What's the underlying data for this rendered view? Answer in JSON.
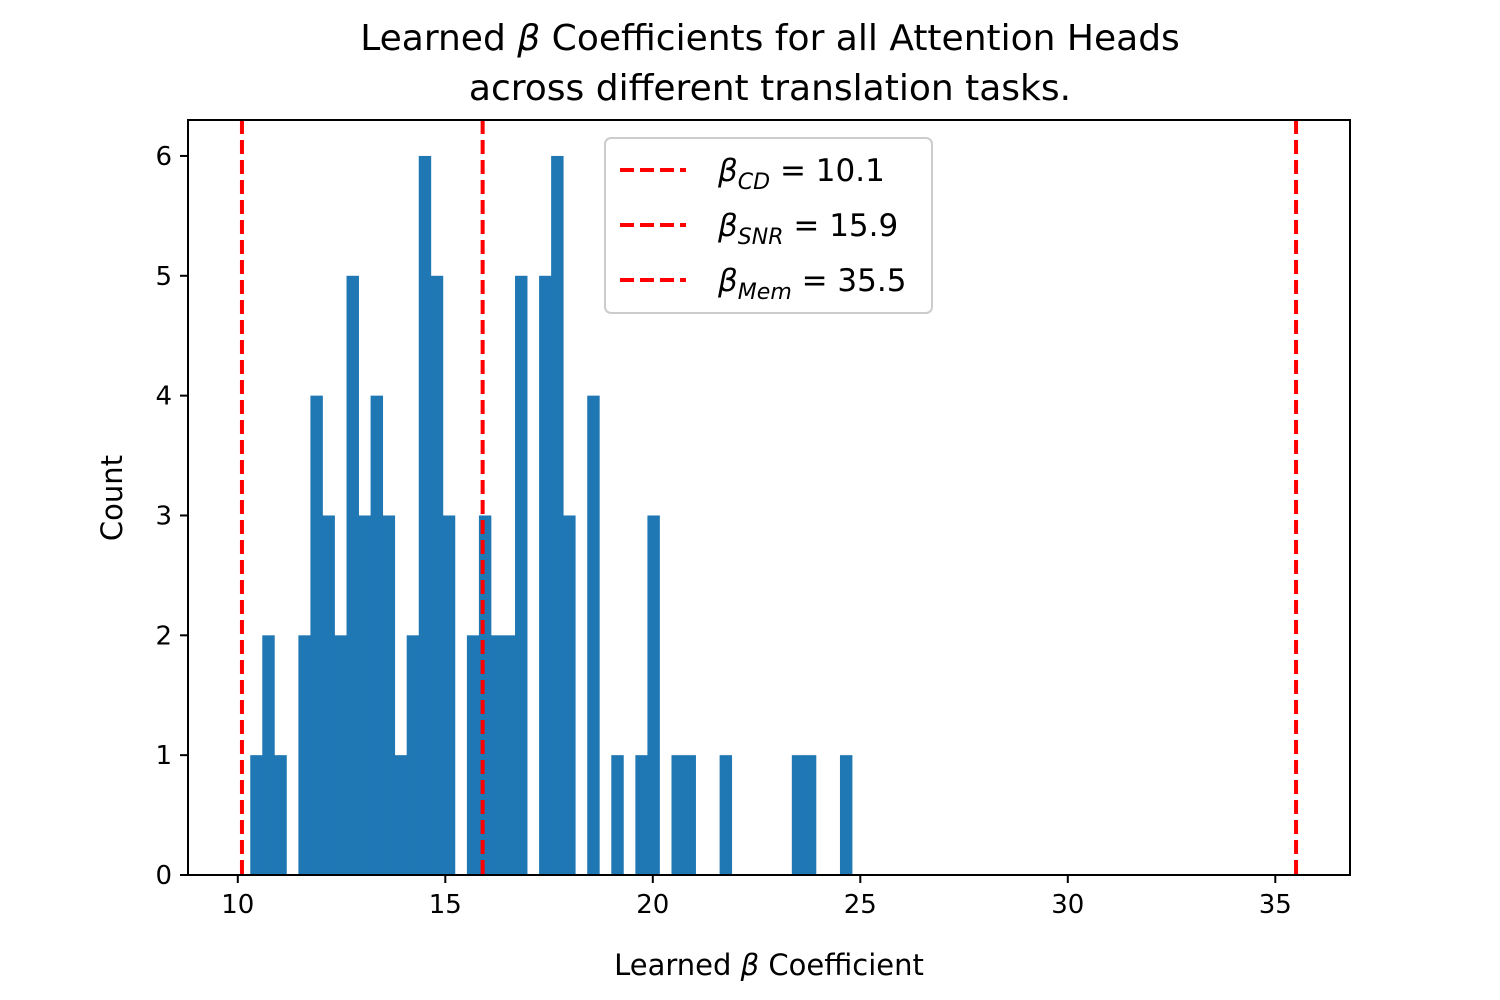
{
  "chart_data": {
    "type": "bar",
    "title_line1_pre": "Learned ",
    "title_symbol": "β",
    "title_line1_post": " Coefficients for all Attention Heads",
    "title_line2": "across different translation tasks.",
    "xlabel_pre": "Learned ",
    "xlabel_symbol": "β",
    "xlabel_post": " Coefficient",
    "ylabel": "Count",
    "xlim": [
      8.8,
      36.8
    ],
    "ylim": [
      0,
      6.3
    ],
    "xticks": [
      10,
      15,
      20,
      25,
      30,
      35
    ],
    "yticks": [
      0,
      1,
      2,
      3,
      4,
      5,
      6
    ],
    "bin_width": 0.29,
    "bins": [
      {
        "x": 10.3,
        "count": 1
      },
      {
        "x": 10.59,
        "count": 2
      },
      {
        "x": 10.88,
        "count": 1
      },
      {
        "x": 11.46,
        "count": 2
      },
      {
        "x": 11.75,
        "count": 4
      },
      {
        "x": 12.04,
        "count": 3
      },
      {
        "x": 12.33,
        "count": 2
      },
      {
        "x": 12.62,
        "count": 5
      },
      {
        "x": 12.91,
        "count": 3
      },
      {
        "x": 13.2,
        "count": 4
      },
      {
        "x": 13.49,
        "count": 3
      },
      {
        "x": 13.78,
        "count": 1
      },
      {
        "x": 14.07,
        "count": 2
      },
      {
        "x": 14.36,
        "count": 6
      },
      {
        "x": 14.65,
        "count": 5
      },
      {
        "x": 14.94,
        "count": 3
      },
      {
        "x": 15.52,
        "count": 2
      },
      {
        "x": 15.81,
        "count": 3
      },
      {
        "x": 16.1,
        "count": 2
      },
      {
        "x": 16.39,
        "count": 2
      },
      {
        "x": 16.68,
        "count": 5
      },
      {
        "x": 17.26,
        "count": 5
      },
      {
        "x": 17.55,
        "count": 6
      },
      {
        "x": 17.84,
        "count": 3
      },
      {
        "x": 18.42,
        "count": 4
      },
      {
        "x": 19.0,
        "count": 1
      },
      {
        "x": 19.58,
        "count": 1
      },
      {
        "x": 19.87,
        "count": 3
      },
      {
        "x": 20.45,
        "count": 1
      },
      {
        "x": 20.74,
        "count": 1
      },
      {
        "x": 21.61,
        "count": 1
      },
      {
        "x": 23.35,
        "count": 1
      },
      {
        "x": 23.64,
        "count": 1
      },
      {
        "x": 24.51,
        "count": 1
      }
    ],
    "bar_color": "#1f77b4",
    "reference_lines": [
      {
        "x": 10.1,
        "symbol": "β",
        "sub": "CD",
        "rest": " = 10.1",
        "color": "#ff0000"
      },
      {
        "x": 15.9,
        "symbol": "β",
        "sub": "SNR",
        "rest": " = 15.9",
        "color": "#ff0000"
      },
      {
        "x": 35.5,
        "symbol": "β",
        "sub": "Mem",
        "rest": " = 35.5",
        "color": "#ff0000"
      }
    ],
    "legend_position": "upper-center",
    "grid": false
  }
}
